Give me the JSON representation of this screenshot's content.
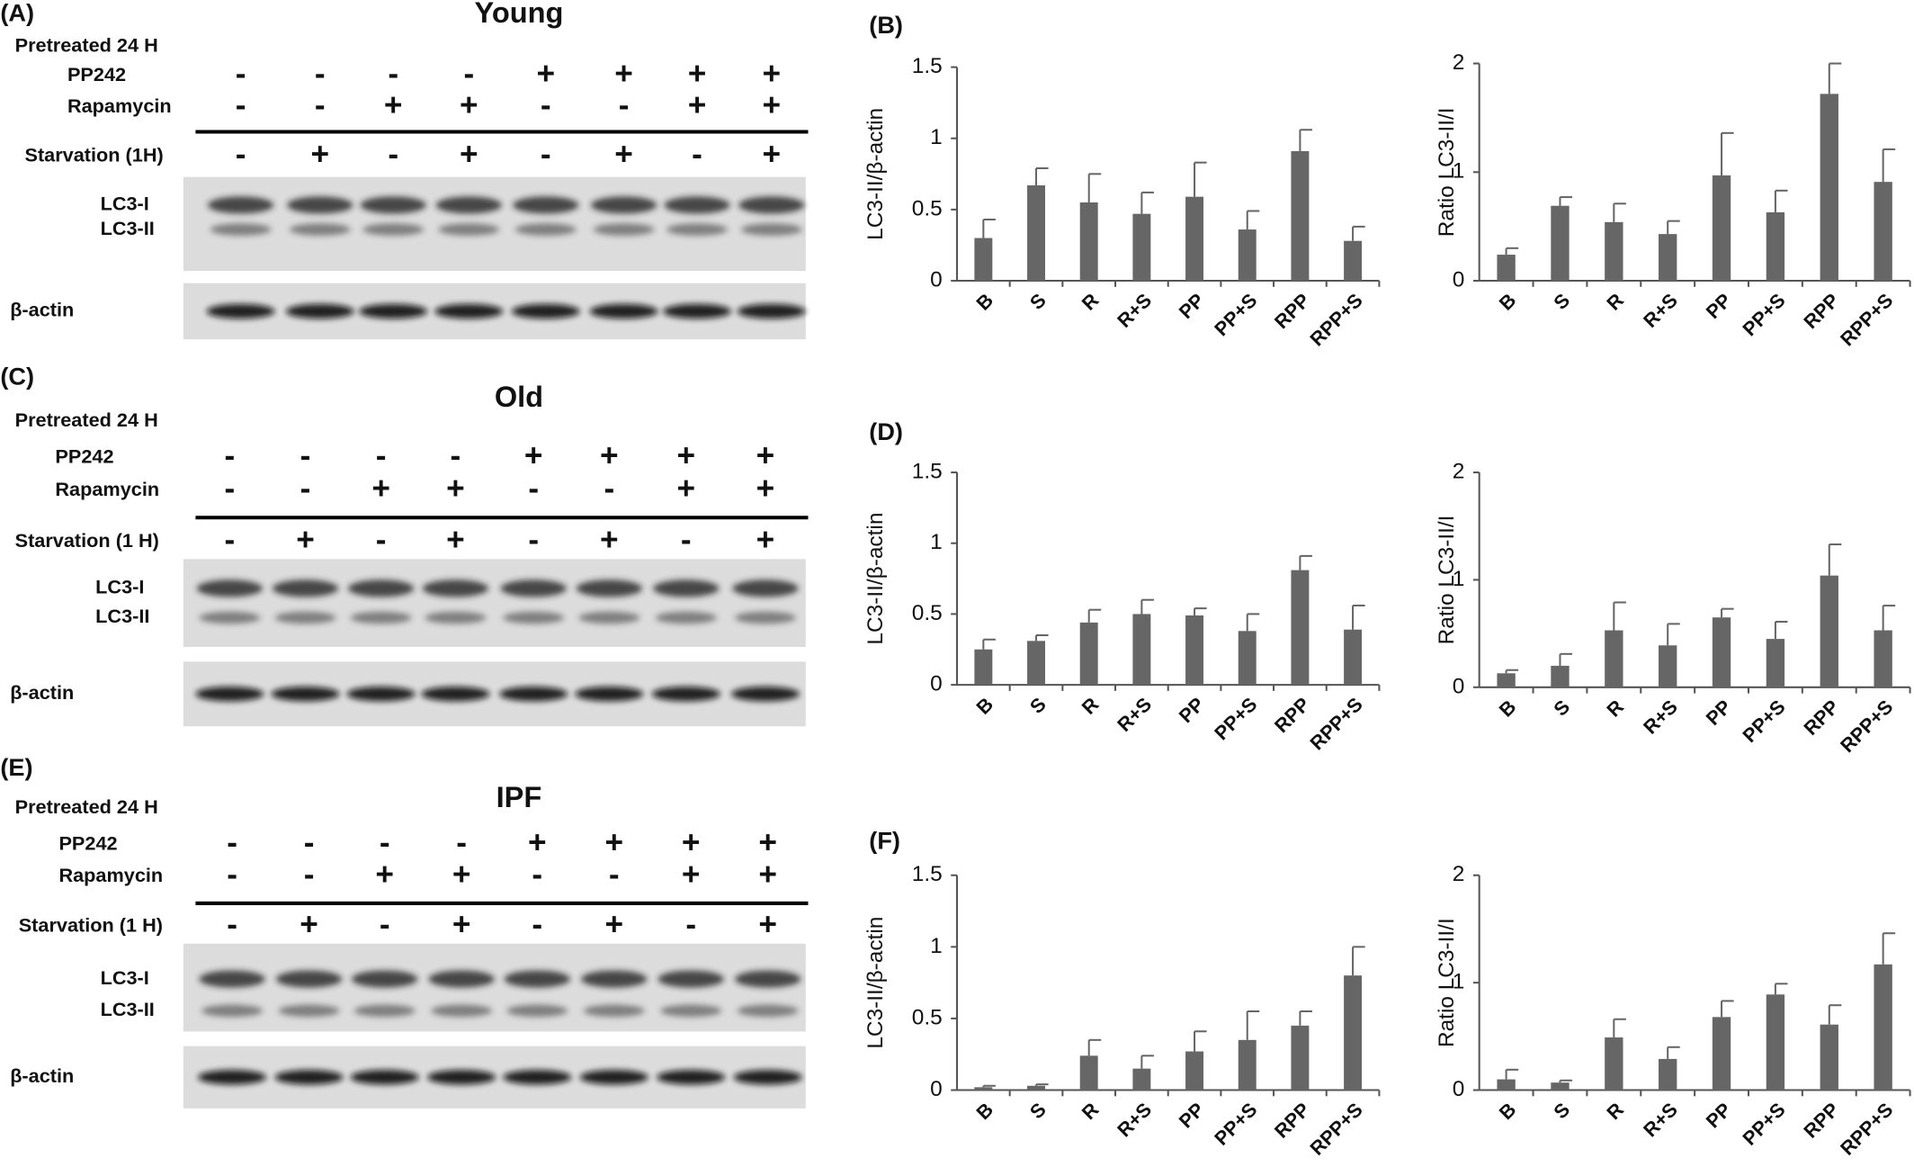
{
  "blots": [
    {
      "panel_label": "(A)",
      "title": "Young",
      "pretreated": "Pretreated 24 H",
      "rows": [
        {
          "label": "PP242",
          "signs": [
            "-",
            "-",
            "-",
            "-",
            "+",
            "+",
            "+",
            "+"
          ]
        },
        {
          "label": "Rapamycin",
          "signs": [
            "-",
            "-",
            "+",
            "+",
            "-",
            "-",
            "+",
            "+"
          ]
        },
        {
          "label": "Starvation (1H)",
          "signs": [
            "-",
            "+",
            "-",
            "+",
            "-",
            "+",
            "-",
            "+"
          ]
        }
      ],
      "bands": [
        "LC3-I",
        "LC3-II"
      ],
      "loading": "β-actin"
    },
    {
      "panel_label": "(C)",
      "title": "Old",
      "pretreated": "Pretreated 24 H",
      "rows": [
        {
          "label": "PP242",
          "signs": [
            "-",
            "-",
            "-",
            "-",
            "+",
            "+",
            "+",
            "+"
          ]
        },
        {
          "label": "Rapamycin",
          "signs": [
            "-",
            "-",
            "+",
            "+",
            "-",
            "-",
            "+",
            "+"
          ]
        },
        {
          "label": "Starvation (1 H)",
          "signs": [
            "-",
            "+",
            "-",
            "+",
            "-",
            "+",
            "-",
            "+"
          ]
        }
      ],
      "bands": [
        "LC3-I",
        "LC3-II"
      ],
      "loading": "β-actin"
    },
    {
      "panel_label": "(E)",
      "title": "IPF",
      "pretreated": "Pretreated 24 H",
      "rows": [
        {
          "label": "PP242",
          "signs": [
            "-",
            "-",
            "-",
            "-",
            "+",
            "+",
            "+",
            "+"
          ]
        },
        {
          "label": "Rapamycin",
          "signs": [
            "-",
            "-",
            "+",
            "+",
            "-",
            "-",
            "+",
            "+"
          ]
        },
        {
          "label": "Starvation (1 H)",
          "signs": [
            "-",
            "+",
            "-",
            "+",
            "-",
            "+",
            "-",
            "+"
          ]
        }
      ],
      "bands": [
        "LC3-I",
        "LC3-II"
      ],
      "loading": "β-actin"
    }
  ],
  "chart_data": [
    {
      "type": "bar",
      "panel_label": "(B)",
      "y_label": "LC3-II/β-actin",
      "color": "#666666",
      "categories": [
        "B",
        "S",
        "R",
        "R+S",
        "PP",
        "PP+S",
        "RPP",
        "RPP+S"
      ],
      "values": [
        0.3,
        0.67,
        0.55,
        0.47,
        0.59,
        0.36,
        0.91,
        0.28
      ],
      "errors": [
        0.13,
        0.12,
        0.2,
        0.15,
        0.24,
        0.13,
        0.15,
        0.1
      ],
      "ylim": [
        0,
        1.5
      ],
      "yticks": [
        0,
        0.5,
        1,
        1.5
      ]
    },
    {
      "type": "bar",
      "y_label": "Ratio LC3-II/I",
      "color": "#666666",
      "categories": [
        "B",
        "S",
        "R",
        "R+S",
        "PP",
        "PP+S",
        "RPP",
        "RPP+S"
      ],
      "values": [
        0.24,
        0.69,
        0.54,
        0.43,
        0.97,
        0.63,
        1.72,
        0.91
      ],
      "errors": [
        0.06,
        0.08,
        0.17,
        0.12,
        0.39,
        0.2,
        0.28,
        0.3
      ],
      "ylim": [
        0,
        2
      ],
      "yticks": [
        0,
        1,
        2
      ]
    },
    {
      "type": "bar",
      "panel_label": "(D)",
      "y_label": "LC3-II/β-actin",
      "color": "#666666",
      "categories": [
        "B",
        "S",
        "R",
        "R+S",
        "PP",
        "PP+S",
        "RPP",
        "RPP+S"
      ],
      "values": [
        0.25,
        0.31,
        0.44,
        0.5,
        0.49,
        0.38,
        0.81,
        0.39
      ],
      "errors": [
        0.07,
        0.04,
        0.09,
        0.1,
        0.05,
        0.12,
        0.1,
        0.17
      ],
      "ylim": [
        0,
        1.5
      ],
      "yticks": [
        0,
        0.5,
        1,
        1.5
      ]
    },
    {
      "type": "bar",
      "y_label": "Ratio LC3-II/I",
      "color": "#666666",
      "categories": [
        "B",
        "S",
        "R",
        "R+S",
        "PP",
        "PP+S",
        "RPP",
        "RPP+S"
      ],
      "values": [
        0.13,
        0.2,
        0.53,
        0.39,
        0.65,
        0.45,
        1.04,
        0.53
      ],
      "errors": [
        0.03,
        0.11,
        0.26,
        0.2,
        0.08,
        0.16,
        0.29,
        0.23
      ],
      "ylim": [
        0,
        2
      ],
      "yticks": [
        0,
        1,
        2
      ]
    },
    {
      "type": "bar",
      "panel_label": "(F)",
      "y_label": "LC3-II/β-actin",
      "color": "#666666",
      "categories": [
        "B",
        "S",
        "R",
        "R+S",
        "PP",
        "PP+S",
        "RPP",
        "RPP+S"
      ],
      "values": [
        0.02,
        0.03,
        0.24,
        0.15,
        0.27,
        0.35,
        0.45,
        0.8
      ],
      "errors": [
        0.01,
        0.01,
        0.11,
        0.09,
        0.14,
        0.2,
        0.1,
        0.2
      ],
      "ylim": [
        0,
        1.5
      ],
      "yticks": [
        0,
        0.5,
        1,
        1.5
      ]
    },
    {
      "type": "bar",
      "y_label": "Ratio LC3-II/I",
      "color": "#666666",
      "categories": [
        "B",
        "S",
        "R",
        "R+S",
        "PP",
        "PP+S",
        "RPP",
        "RPP+S"
      ],
      "values": [
        0.1,
        0.07,
        0.49,
        0.29,
        0.68,
        0.89,
        0.61,
        1.17
      ],
      "errors": [
        0.09,
        0.02,
        0.17,
        0.11,
        0.15,
        0.1,
        0.18,
        0.29
      ],
      "ylim": [
        0,
        2
      ],
      "yticks": [
        0,
        1,
        2
      ]
    }
  ]
}
